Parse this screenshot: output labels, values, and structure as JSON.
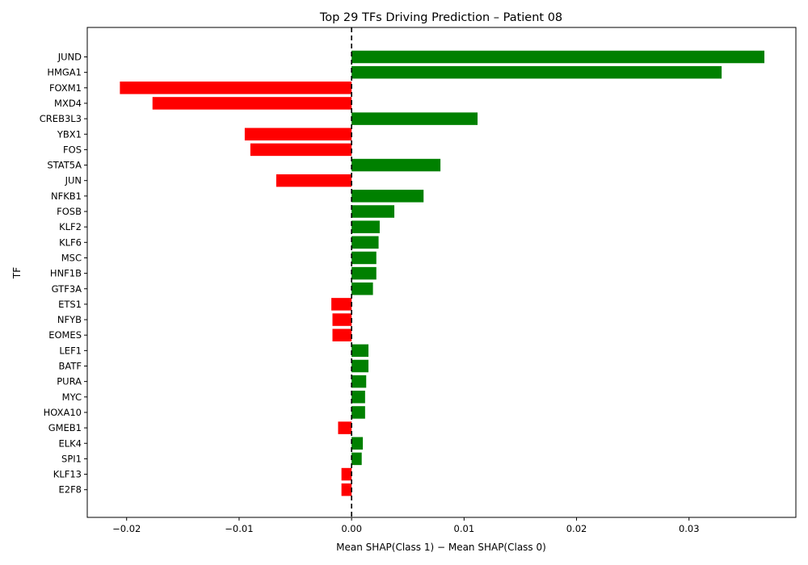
{
  "chart_data": {
    "type": "bar",
    "orientation": "horizontal",
    "title": "Top 29 TFs Driving Prediction – Patient 08",
    "xlabel": "Mean SHAP(Class 1) − Mean SHAP(Class 0)",
    "ylabel": "TF",
    "xlim": [
      -0.0235,
      0.0395
    ],
    "xticks": [
      -0.02,
      -0.01,
      0.0,
      0.01,
      0.02,
      0.03
    ],
    "xtick_labels": [
      "−0.02",
      "−0.01",
      "0.00",
      "0.01",
      "0.02",
      "0.03"
    ],
    "categories": [
      "JUND",
      "HMGA1",
      "FOXM1",
      "MXD4",
      "CREB3L3",
      "YBX1",
      "FOS",
      "STAT5A",
      "JUN",
      "NFKB1",
      "FOSB",
      "KLF2",
      "KLF6",
      "MSC",
      "HNF1B",
      "GTF3A",
      "ETS1",
      "NFYB",
      "EOMES",
      "LEF1",
      "BATF",
      "PURA",
      "MYC",
      "HOXA10",
      "GMEB1",
      "ELK4",
      "SPI1",
      "KLF13",
      "E2F8"
    ],
    "values": [
      0.0367,
      0.0329,
      -0.0206,
      -0.0177,
      0.0112,
      -0.0095,
      -0.009,
      0.0079,
      -0.0067,
      0.0064,
      0.0038,
      0.0025,
      0.0024,
      0.0022,
      0.0022,
      0.0019,
      -0.0018,
      -0.0017,
      -0.0017,
      0.0015,
      0.0015,
      0.0013,
      0.0012,
      0.0012,
      -0.0012,
      0.001,
      0.0009,
      -0.0009,
      -0.0009
    ],
    "positive_color": "#008000",
    "negative_color": "#ff0000",
    "zero_line": "dashed",
    "grid": false
  }
}
